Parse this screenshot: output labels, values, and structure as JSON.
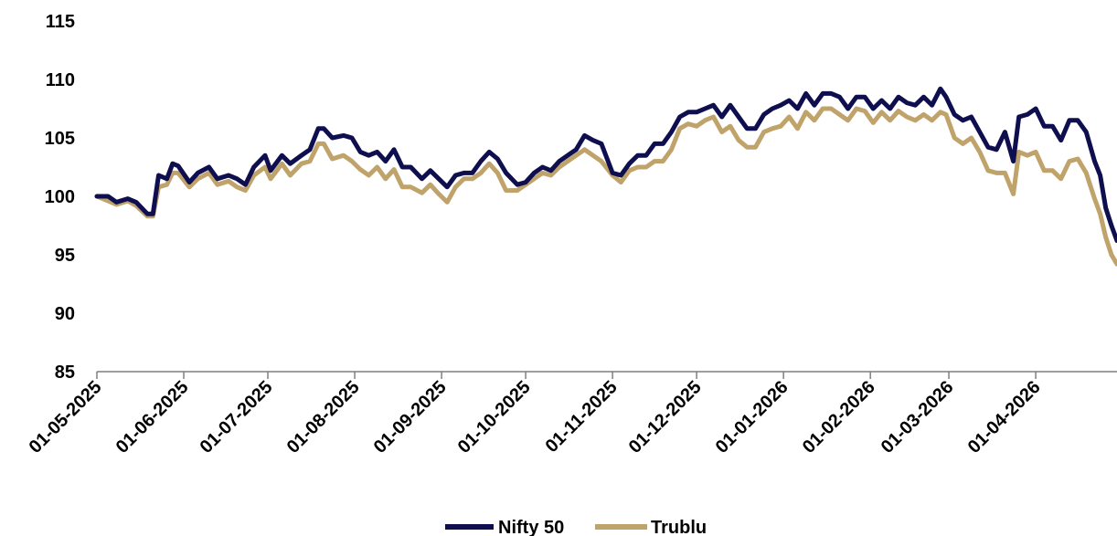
{
  "chart_data": {
    "type": "line",
    "title": "",
    "xlabel": "",
    "ylabel": "",
    "x_range": [
      "2025-05-01",
      "2026-04-30"
    ],
    "ylim": [
      85,
      115
    ],
    "yticks": [
      85,
      90,
      95,
      100,
      105,
      110,
      115
    ],
    "xticks": [
      "01-05-2025",
      "01-06-2025",
      "01-07-2025",
      "01-08-2025",
      "01-09-2025",
      "01-10-2025",
      "01-11-2025",
      "01-12-2025",
      "01-01-2026",
      "01-02-2026",
      "01-03-2026",
      "01-04-2026"
    ],
    "grid": false,
    "legend_position": "bottom",
    "series": [
      {
        "name": "Nifty 50",
        "color": "#0f0f4f",
        "points": [
          [
            "2025-05-01",
            100.0
          ],
          [
            "2025-05-05",
            100.0
          ],
          [
            "2025-05-08",
            99.5
          ],
          [
            "2025-05-12",
            99.8
          ],
          [
            "2025-05-15",
            99.5
          ],
          [
            "2025-05-19",
            98.5
          ],
          [
            "2025-05-21",
            98.5
          ],
          [
            "2025-05-23",
            101.8
          ],
          [
            "2025-05-26",
            101.5
          ],
          [
            "2025-05-28",
            102.8
          ],
          [
            "2025-05-30",
            102.6
          ],
          [
            "2025-06-03",
            101.2
          ],
          [
            "2025-06-06",
            102.0
          ],
          [
            "2025-06-10",
            102.5
          ],
          [
            "2025-06-13",
            101.5
          ],
          [
            "2025-06-17",
            101.8
          ],
          [
            "2025-06-20",
            101.5
          ],
          [
            "2025-06-23",
            101.0
          ],
          [
            "2025-06-26",
            102.5
          ],
          [
            "2025-06-30",
            103.5
          ],
          [
            "2025-07-02",
            102.2
          ],
          [
            "2025-07-06",
            103.5
          ],
          [
            "2025-07-09",
            102.8
          ],
          [
            "2025-07-13",
            103.5
          ],
          [
            "2025-07-16",
            104.0
          ],
          [
            "2025-07-19",
            105.8
          ],
          [
            "2025-07-21",
            105.8
          ],
          [
            "2025-07-24",
            105.0
          ],
          [
            "2025-07-28",
            105.2
          ],
          [
            "2025-07-31",
            105.0
          ],
          [
            "2025-08-03",
            103.8
          ],
          [
            "2025-08-06",
            103.5
          ],
          [
            "2025-08-09",
            103.8
          ],
          [
            "2025-08-12",
            103.0
          ],
          [
            "2025-08-15",
            104.0
          ],
          [
            "2025-08-18",
            102.5
          ],
          [
            "2025-08-21",
            102.5
          ],
          [
            "2025-08-25",
            101.5
          ],
          [
            "2025-08-28",
            102.2
          ],
          [
            "2025-08-31",
            101.5
          ],
          [
            "2025-09-03",
            100.8
          ],
          [
            "2025-09-06",
            101.8
          ],
          [
            "2025-09-09",
            102.0
          ],
          [
            "2025-09-12",
            102.0
          ],
          [
            "2025-09-15",
            103.0
          ],
          [
            "2025-09-18",
            103.8
          ],
          [
            "2025-09-21",
            103.2
          ],
          [
            "2025-09-24",
            102.0
          ],
          [
            "2025-09-28",
            101.0
          ],
          [
            "2025-10-01",
            101.2
          ],
          [
            "2025-10-04",
            102.0
          ],
          [
            "2025-10-07",
            102.5
          ],
          [
            "2025-10-10",
            102.2
          ],
          [
            "2025-10-13",
            103.0
          ],
          [
            "2025-10-16",
            103.5
          ],
          [
            "2025-10-19",
            104.0
          ],
          [
            "2025-10-22",
            105.2
          ],
          [
            "2025-10-25",
            104.8
          ],
          [
            "2025-10-28",
            104.5
          ],
          [
            "2025-11-01",
            102.0
          ],
          [
            "2025-11-04",
            101.8
          ],
          [
            "2025-11-07",
            102.8
          ],
          [
            "2025-11-10",
            103.5
          ],
          [
            "2025-11-13",
            103.5
          ],
          [
            "2025-11-16",
            104.5
          ],
          [
            "2025-11-19",
            104.5
          ],
          [
            "2025-11-22",
            105.5
          ],
          [
            "2025-11-25",
            106.8
          ],
          [
            "2025-11-28",
            107.2
          ],
          [
            "2025-12-01",
            107.2
          ],
          [
            "2025-12-04",
            107.5
          ],
          [
            "2025-12-07",
            107.8
          ],
          [
            "2025-12-10",
            106.8
          ],
          [
            "2025-12-13",
            107.8
          ],
          [
            "2025-12-16",
            106.8
          ],
          [
            "2025-12-19",
            105.8
          ],
          [
            "2025-12-22",
            105.8
          ],
          [
            "2025-12-25",
            107.0
          ],
          [
            "2025-12-28",
            107.5
          ],
          [
            "2025-12-31",
            107.8
          ],
          [
            "2026-01-03",
            108.2
          ],
          [
            "2026-01-06",
            107.5
          ],
          [
            "2026-01-09",
            108.8
          ],
          [
            "2026-01-12",
            107.8
          ],
          [
            "2026-01-15",
            108.8
          ],
          [
            "2026-01-18",
            108.8
          ],
          [
            "2026-01-21",
            108.5
          ],
          [
            "2026-01-24",
            107.5
          ],
          [
            "2026-01-27",
            108.5
          ],
          [
            "2026-01-30",
            108.5
          ],
          [
            "2026-02-02",
            107.5
          ],
          [
            "2026-02-05",
            108.2
          ],
          [
            "2026-02-08",
            107.5
          ],
          [
            "2026-02-11",
            108.5
          ],
          [
            "2026-02-14",
            108.0
          ],
          [
            "2026-02-17",
            107.8
          ],
          [
            "2026-02-20",
            108.5
          ],
          [
            "2026-02-23",
            107.8
          ],
          [
            "2026-02-26",
            109.2
          ],
          [
            "2026-02-28",
            108.5
          ],
          [
            "2026-03-03",
            107.0
          ],
          [
            "2026-03-06",
            106.5
          ],
          [
            "2026-03-09",
            106.8
          ],
          [
            "2026-03-12",
            105.5
          ],
          [
            "2026-03-15",
            104.2
          ],
          [
            "2026-03-18",
            104.0
          ],
          [
            "2026-03-21",
            105.5
          ],
          [
            "2026-03-24",
            103.0
          ],
          [
            "2026-03-26",
            106.8
          ],
          [
            "2026-03-29",
            107.0
          ],
          [
            "2026-04-01",
            107.5
          ],
          [
            "2026-04-04",
            106.0
          ],
          [
            "2026-04-07",
            106.0
          ],
          [
            "2026-04-10",
            104.8
          ],
          [
            "2026-04-13",
            106.5
          ],
          [
            "2026-04-16",
            106.5
          ],
          [
            "2026-04-19",
            105.5
          ],
          [
            "2026-04-22",
            103.0
          ],
          [
            "2026-04-24",
            101.8
          ],
          [
            "2026-04-26",
            99.0
          ],
          [
            "2026-04-28",
            97.5
          ],
          [
            "2026-04-30",
            96.2
          ]
        ]
      },
      {
        "name": "Trublu",
        "color": "#bfa36a",
        "points": [
          [
            "2025-05-01",
            100.0
          ],
          [
            "2025-05-05",
            99.6
          ],
          [
            "2025-05-08",
            99.3
          ],
          [
            "2025-05-12",
            99.6
          ],
          [
            "2025-05-15",
            99.2
          ],
          [
            "2025-05-19",
            98.3
          ],
          [
            "2025-05-21",
            98.3
          ],
          [
            "2025-05-23",
            100.8
          ],
          [
            "2025-05-26",
            101.0
          ],
          [
            "2025-05-28",
            102.0
          ],
          [
            "2025-05-30",
            102.0
          ],
          [
            "2025-06-03",
            100.8
          ],
          [
            "2025-06-06",
            101.5
          ],
          [
            "2025-06-10",
            102.0
          ],
          [
            "2025-06-13",
            101.0
          ],
          [
            "2025-06-17",
            101.3
          ],
          [
            "2025-06-20",
            100.8
          ],
          [
            "2025-06-23",
            100.5
          ],
          [
            "2025-06-26",
            101.8
          ],
          [
            "2025-06-30",
            102.5
          ],
          [
            "2025-07-02",
            101.5
          ],
          [
            "2025-07-06",
            102.8
          ],
          [
            "2025-07-09",
            101.8
          ],
          [
            "2025-07-13",
            102.8
          ],
          [
            "2025-07-16",
            103.0
          ],
          [
            "2025-07-19",
            104.5
          ],
          [
            "2025-07-21",
            104.5
          ],
          [
            "2025-07-24",
            103.2
          ],
          [
            "2025-07-28",
            103.5
          ],
          [
            "2025-07-31",
            103.0
          ],
          [
            "2025-08-03",
            102.3
          ],
          [
            "2025-08-06",
            101.8
          ],
          [
            "2025-08-09",
            102.5
          ],
          [
            "2025-08-12",
            101.5
          ],
          [
            "2025-08-15",
            102.3
          ],
          [
            "2025-08-18",
            100.8
          ],
          [
            "2025-08-21",
            100.8
          ],
          [
            "2025-08-25",
            100.3
          ],
          [
            "2025-08-28",
            101.0
          ],
          [
            "2025-08-31",
            100.2
          ],
          [
            "2025-09-03",
            99.5
          ],
          [
            "2025-09-06",
            100.8
          ],
          [
            "2025-09-09",
            101.5
          ],
          [
            "2025-09-12",
            101.5
          ],
          [
            "2025-09-15",
            102.0
          ],
          [
            "2025-09-18",
            102.8
          ],
          [
            "2025-09-21",
            102.0
          ],
          [
            "2025-09-24",
            100.5
          ],
          [
            "2025-09-28",
            100.5
          ],
          [
            "2025-10-01",
            101.0
          ],
          [
            "2025-10-04",
            101.5
          ],
          [
            "2025-10-07",
            102.0
          ],
          [
            "2025-10-10",
            101.8
          ],
          [
            "2025-10-13",
            102.5
          ],
          [
            "2025-10-16",
            103.0
          ],
          [
            "2025-10-19",
            103.5
          ],
          [
            "2025-10-22",
            104.0
          ],
          [
            "2025-10-25",
            103.5
          ],
          [
            "2025-10-28",
            103.0
          ],
          [
            "2025-11-01",
            101.8
          ],
          [
            "2025-11-04",
            101.2
          ],
          [
            "2025-11-07",
            102.2
          ],
          [
            "2025-11-10",
            102.5
          ],
          [
            "2025-11-13",
            102.5
          ],
          [
            "2025-11-16",
            103.0
          ],
          [
            "2025-11-19",
            103.0
          ],
          [
            "2025-11-22",
            104.0
          ],
          [
            "2025-11-25",
            105.8
          ],
          [
            "2025-11-28",
            106.2
          ],
          [
            "2025-12-01",
            106.0
          ],
          [
            "2025-12-04",
            106.5
          ],
          [
            "2025-12-07",
            106.8
          ],
          [
            "2025-12-10",
            105.5
          ],
          [
            "2025-12-13",
            106.0
          ],
          [
            "2025-12-16",
            104.8
          ],
          [
            "2025-12-19",
            104.2
          ],
          [
            "2025-12-22",
            104.2
          ],
          [
            "2025-12-25",
            105.5
          ],
          [
            "2025-12-28",
            105.8
          ],
          [
            "2025-12-31",
            106.0
          ],
          [
            "2026-01-03",
            106.8
          ],
          [
            "2026-01-06",
            105.8
          ],
          [
            "2026-01-09",
            107.2
          ],
          [
            "2026-01-12",
            106.5
          ],
          [
            "2026-01-15",
            107.5
          ],
          [
            "2026-01-18",
            107.5
          ],
          [
            "2026-01-21",
            107.0
          ],
          [
            "2026-01-24",
            106.5
          ],
          [
            "2026-01-27",
            107.5
          ],
          [
            "2026-01-30",
            107.3
          ],
          [
            "2026-02-02",
            106.3
          ],
          [
            "2026-02-05",
            107.2
          ],
          [
            "2026-02-08",
            106.5
          ],
          [
            "2026-02-11",
            107.3
          ],
          [
            "2026-02-14",
            106.8
          ],
          [
            "2026-02-17",
            106.5
          ],
          [
            "2026-02-20",
            107.0
          ],
          [
            "2026-02-23",
            106.5
          ],
          [
            "2026-02-26",
            107.2
          ],
          [
            "2026-02-28",
            107.0
          ],
          [
            "2026-03-03",
            105.0
          ],
          [
            "2026-03-06",
            104.5
          ],
          [
            "2026-03-09",
            105.0
          ],
          [
            "2026-03-12",
            103.8
          ],
          [
            "2026-03-15",
            102.2
          ],
          [
            "2026-03-18",
            102.0
          ],
          [
            "2026-03-21",
            102.0
          ],
          [
            "2026-03-24",
            100.2
          ],
          [
            "2026-03-26",
            103.8
          ],
          [
            "2026-03-29",
            103.5
          ],
          [
            "2026-04-01",
            103.8
          ],
          [
            "2026-04-04",
            102.2
          ],
          [
            "2026-04-07",
            102.2
          ],
          [
            "2026-04-10",
            101.5
          ],
          [
            "2026-04-13",
            103.0
          ],
          [
            "2026-04-16",
            103.2
          ],
          [
            "2026-04-19",
            102.0
          ],
          [
            "2026-04-22",
            99.8
          ],
          [
            "2026-04-24",
            98.5
          ],
          [
            "2026-04-26",
            96.5
          ],
          [
            "2026-04-28",
            95.0
          ],
          [
            "2026-04-30",
            94.2
          ]
        ]
      }
    ]
  }
}
